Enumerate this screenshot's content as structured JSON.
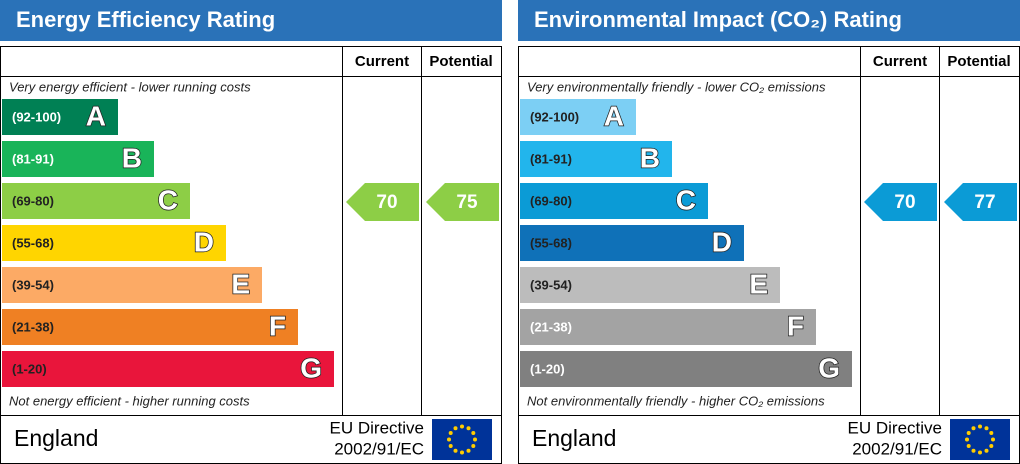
{
  "panels": [
    {
      "title": "Energy Efficiency Rating",
      "headers": [
        "Current",
        "Potential"
      ],
      "top_note": "Very energy efficient - lower running costs",
      "bottom_note": "Not energy efficient - higher running costs",
      "bands": [
        {
          "range": "(92-100)",
          "letter": "A",
          "color": "#008054",
          "text_color": "#ffffff"
        },
        {
          "range": "(81-91)",
          "letter": "B",
          "color": "#19b459",
          "text_color": "#ffffff"
        },
        {
          "range": "(69-80)",
          "letter": "C",
          "color": "#8dce46",
          "text_color": "#222222"
        },
        {
          "range": "(55-68)",
          "letter": "D",
          "color": "#ffd500",
          "text_color": "#222222"
        },
        {
          "range": "(39-54)",
          "letter": "E",
          "color": "#fcaa65",
          "text_color": "#222222"
        },
        {
          "range": "(21-38)",
          "letter": "F",
          "color": "#ef8023",
          "text_color": "#222222"
        },
        {
          "range": "(1-20)",
          "letter": "G",
          "color": "#e9153b",
          "text_color": "#222222"
        }
      ],
      "current": 70,
      "potential": 75,
      "footer": {
        "country": "England",
        "directive": "EU Directive",
        "code": "2002/91/EC"
      }
    },
    {
      "title": "Environmental Impact (CO₂) Rating",
      "headers": [
        "Current",
        "Potential"
      ],
      "top_note": "Very environmentally friendly - lower CO₂ emissions",
      "bottom_note": "Not environmentally friendly - higher CO₂ emissions",
      "bands": [
        {
          "range": "(92-100)",
          "letter": "A",
          "color": "#7ccff4",
          "text_color": "#222222"
        },
        {
          "range": "(81-91)",
          "letter": "B",
          "color": "#22b5ec",
          "text_color": "#222222"
        },
        {
          "range": "(69-80)",
          "letter": "C",
          "color": "#0b9bd6",
          "text_color": "#222222"
        },
        {
          "range": "(55-68)",
          "letter": "D",
          "color": "#0f71b8",
          "text_color": "#222222"
        },
        {
          "range": "(39-54)",
          "letter": "E",
          "color": "#bcbcbc",
          "text_color": "#222222"
        },
        {
          "range": "(21-38)",
          "letter": "F",
          "color": "#a3a3a3",
          "text_color": "#ffffff"
        },
        {
          "range": "(1-20)",
          "letter": "G",
          "color": "#808080",
          "text_color": "#ffffff"
        }
      ],
      "current": 70,
      "potential": 77,
      "footer": {
        "country": "England",
        "directive": "EU Directive",
        "code": "2002/91/EC"
      }
    }
  ]
}
